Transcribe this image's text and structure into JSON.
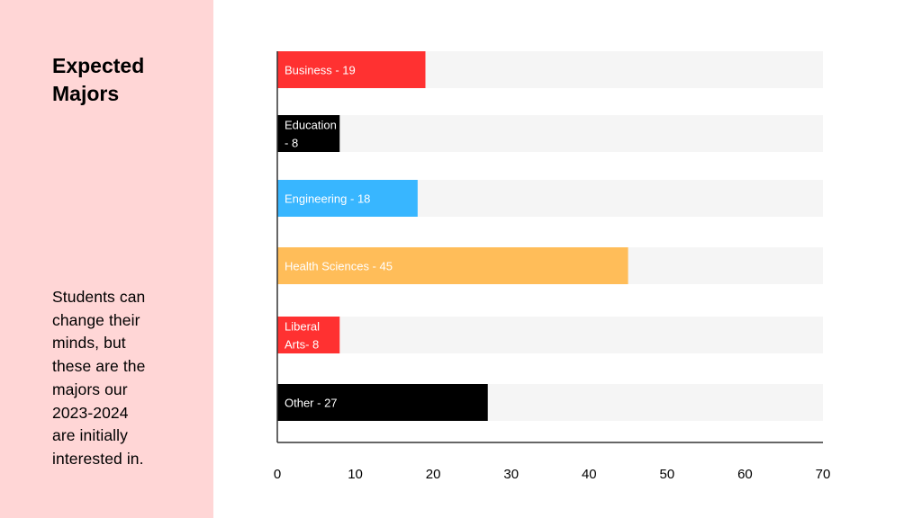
{
  "sidebar": {
    "title": "Expected\nMajors",
    "note": "Students can\nchange their\nminds, but\nthese are the\nmajors our\n2023-2024\nare initially\ninterested in."
  },
  "chart_data": {
    "type": "bar",
    "orientation": "horizontal",
    "xlim": [
      0,
      70
    ],
    "x_ticks": [
      0,
      10,
      20,
      30,
      40,
      50,
      60,
      70
    ],
    "grid": false,
    "bars": [
      {
        "category": "Business",
        "value": 19,
        "label_lines": [
          "Business - 19"
        ],
        "color": "#ff3131",
        "label_color": "#ffffff"
      },
      {
        "category": "Education",
        "value": 8,
        "label_lines": [
          "Education",
          "- 8"
        ],
        "color": "#000000",
        "label_color": "#ffffff"
      },
      {
        "category": "Engineering",
        "value": 18,
        "label_lines": [
          "Engineering - 18"
        ],
        "color": "#38b6ff",
        "label_color": "#ffffff"
      },
      {
        "category": "Health Sciences",
        "value": 45,
        "label_lines": [
          "Health Sciences - 45"
        ],
        "color": "#ffbd59",
        "label_color": "#ffffff"
      },
      {
        "category": "Liberal Arts",
        "value": 8,
        "label_lines": [
          "Liberal",
          "Arts- 8"
        ],
        "color": "#ff3131",
        "label_color": "#ffffff"
      },
      {
        "category": "Other",
        "value": 27,
        "label_lines": [
          "Other - 27"
        ],
        "color": "#000000",
        "label_color": "#ffffff"
      }
    ],
    "track_color": "#f5f5f5"
  }
}
